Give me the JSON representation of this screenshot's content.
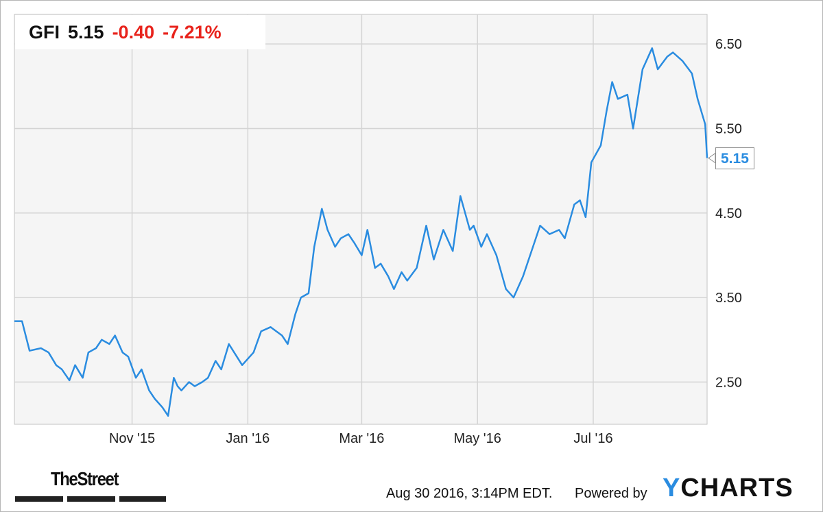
{
  "quote": {
    "ticker": "GFI",
    "price": "5.15",
    "change": "-0.40",
    "change_pct": "-7.21%"
  },
  "last_value_label": "5.15",
  "colors": {
    "line": "#2a8ce0",
    "negative": "#e8231c",
    "grid": "#d4d4d4",
    "plot_bg": "#f5f5f5"
  },
  "chart_data": {
    "type": "line",
    "title": "",
    "xlabel": "",
    "ylabel": "",
    "ylim": [
      2.0,
      6.85
    ],
    "xlim": [
      "2015-08-31",
      "2016-08-30"
    ],
    "y_ticks": [
      {
        "value": 2.5,
        "label": "2.50"
      },
      {
        "value": 3.5,
        "label": "3.50"
      },
      {
        "value": 4.5,
        "label": "4.50"
      },
      {
        "value": 5.5,
        "label": "5.50"
      },
      {
        "value": 6.5,
        "label": "6.50"
      }
    ],
    "x_ticks": [
      {
        "date": "2015-11-01",
        "label": "Nov '15"
      },
      {
        "date": "2016-01-01",
        "label": "Jan '16"
      },
      {
        "date": "2016-03-01",
        "label": "Mar '16"
      },
      {
        "date": "2016-05-01",
        "label": "May '16"
      },
      {
        "date": "2016-07-01",
        "label": "Jul '16"
      }
    ],
    "grid": true,
    "series": [
      {
        "x": [
          "2015-08-31",
          "2015-09-04",
          "2015-09-08",
          "2015-09-14",
          "2015-09-18",
          "2015-09-22",
          "2015-09-25",
          "2015-09-29",
          "2015-10-02",
          "2015-10-06",
          "2015-10-09",
          "2015-10-13",
          "2015-10-16",
          "2015-10-20",
          "2015-10-23",
          "2015-10-27",
          "2015-10-30",
          "2015-11-03",
          "2015-11-06",
          "2015-11-10",
          "2015-11-13",
          "2015-11-17",
          "2015-11-20",
          "2015-11-23",
          "2015-11-25",
          "2015-11-27",
          "2015-12-01",
          "2015-12-04",
          "2015-12-08",
          "2015-12-11",
          "2015-12-15",
          "2015-12-18",
          "2015-12-22",
          "2015-12-29",
          "2016-01-04",
          "2016-01-08",
          "2016-01-13",
          "2016-01-19",
          "2016-01-22",
          "2016-01-26",
          "2016-01-29",
          "2016-02-02",
          "2016-02-05",
          "2016-02-09",
          "2016-02-12",
          "2016-02-16",
          "2016-02-19",
          "2016-02-23",
          "2016-02-26",
          "2016-03-01",
          "2016-03-04",
          "2016-03-08",
          "2016-03-11",
          "2016-03-15",
          "2016-03-18",
          "2016-03-22",
          "2016-03-25",
          "2016-03-30",
          "2016-04-04",
          "2016-04-08",
          "2016-04-13",
          "2016-04-18",
          "2016-04-22",
          "2016-04-27",
          "2016-04-29",
          "2016-05-03",
          "2016-05-06",
          "2016-05-11",
          "2016-05-16",
          "2016-05-20",
          "2016-05-25",
          "2016-05-31",
          "2016-06-03",
          "2016-06-08",
          "2016-06-13",
          "2016-06-16",
          "2016-06-21",
          "2016-06-24",
          "2016-06-27",
          "2016-06-30",
          "2016-07-05",
          "2016-07-08",
          "2016-07-11",
          "2016-07-14",
          "2016-07-19",
          "2016-07-22",
          "2016-07-27",
          "2016-08-01",
          "2016-08-04",
          "2016-08-09",
          "2016-08-12",
          "2016-08-17",
          "2016-08-22",
          "2016-08-25",
          "2016-08-29",
          "2016-08-30"
        ],
        "y": [
          3.22,
          3.22,
          2.87,
          2.9,
          2.85,
          2.7,
          2.65,
          2.52,
          2.7,
          2.55,
          2.85,
          2.9,
          3.0,
          2.95,
          3.05,
          2.85,
          2.8,
          2.55,
          2.65,
          2.4,
          2.3,
          2.2,
          2.1,
          2.55,
          2.45,
          2.4,
          2.5,
          2.45,
          2.5,
          2.55,
          2.75,
          2.65,
          2.95,
          2.7,
          2.85,
          3.1,
          3.15,
          3.05,
          2.95,
          3.3,
          3.5,
          3.55,
          4.1,
          4.55,
          4.3,
          4.1,
          4.2,
          4.25,
          4.15,
          4.0,
          4.3,
          3.85,
          3.9,
          3.75,
          3.6,
          3.8,
          3.7,
          3.85,
          4.35,
          3.95,
          4.3,
          4.05,
          4.7,
          4.3,
          4.35,
          4.1,
          4.25,
          4.0,
          3.6,
          3.5,
          3.75,
          4.15,
          4.35,
          4.25,
          4.3,
          4.2,
          4.6,
          4.65,
          4.45,
          5.1,
          5.3,
          5.7,
          6.05,
          5.85,
          5.9,
          5.5,
          6.2,
          6.45,
          6.2,
          6.35,
          6.4,
          6.3,
          6.15,
          5.85,
          5.55,
          5.15
        ]
      }
    ]
  },
  "footer": {
    "timestamp": "Aug 30 2016, 3:14PM EDT.",
    "powered_by": "Powered by",
    "ycharts_y": "Y",
    "ycharts_rest": "CHARTS",
    "thestreet": "TheStreet"
  }
}
